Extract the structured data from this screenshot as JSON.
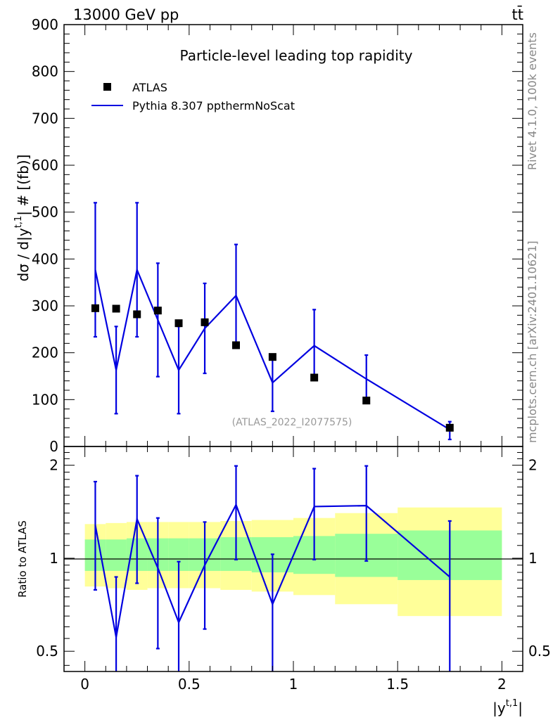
{
  "header": {
    "energy_label": "13000 GeV pp",
    "process_label": "tt̄"
  },
  "side_labels": {
    "rivet": "Rivet 4.1.0,  100k events",
    "mcplots": "mcplots.cern.ch [arXiv:2401.10621]"
  },
  "chart_data": [
    {
      "type": "scatter",
      "panel": "main",
      "title": "Particle-level leading top rapidity",
      "ylabel_main": "dσ / d|y",
      "ylabel_sup": "t,1",
      "ylabel_tail": "| # [(fb)]",
      "xlim": [
        -0.1,
        2.1
      ],
      "ylim": [
        0,
        900
      ],
      "yticks": [
        0,
        100,
        200,
        300,
        400,
        500,
        600,
        700,
        800,
        900
      ],
      "yticklabels": [
        "0",
        "100",
        "200",
        "300",
        "400",
        "500",
        "600",
        "700",
        "800",
        "900"
      ],
      "watermark": "(ATLAS_2022_I2077575)",
      "legend": [
        {
          "name": "ATLAS",
          "marker": "square",
          "color": "#000000"
        },
        {
          "name": "Pythia 8.307 ppthermNoScat",
          "marker": "line",
          "color": "#0000e0"
        }
      ],
      "series": [
        {
          "name": "ATLAS",
          "x": [
            0.05,
            0.15,
            0.25,
            0.35,
            0.45,
            0.575,
            0.725,
            0.9,
            1.1,
            1.35,
            1.75
          ],
          "values": [
            295,
            294,
            282,
            290,
            263,
            265,
            216,
            191,
            147,
            98,
            40
          ]
        },
        {
          "name": "Pythia 8.307 ppthermNoScat",
          "x": [
            0.05,
            0.15,
            0.25,
            0.35,
            0.45,
            0.575,
            0.725,
            0.9,
            1.1,
            1.35,
            1.75
          ],
          "values": [
            377,
            163,
            377,
            270,
            163,
            252,
            322,
            136,
            215,
            144,
            36
          ],
          "err_low": [
            143,
            93,
            143,
            121,
            93,
            96,
            109,
            61,
            71,
            49,
            21
          ],
          "err_high": [
            143,
            93,
            143,
            121,
            93,
            96,
            109,
            61,
            77,
            51,
            17
          ]
        }
      ]
    },
    {
      "type": "line",
      "panel": "ratio",
      "ylabel": "Ratio to ATLAS",
      "xlabel_main": "|y",
      "xlabel_sup": "t,1",
      "xlabel_tail": "|",
      "scale": "log",
      "ylim": [
        0.43,
        2.3
      ],
      "yticks": [
        0.5,
        1,
        2
      ],
      "yticklabels": [
        "0.5",
        "1",
        "2"
      ],
      "xticks": [
        0,
        0.5,
        1,
        1.5,
        2
      ],
      "xticklabels": [
        "0",
        "0.5",
        "1",
        "1.5",
        "2"
      ],
      "bins": [
        [
          0,
          0.1
        ],
        [
          0.1,
          0.2
        ],
        [
          0.2,
          0.3
        ],
        [
          0.3,
          0.4
        ],
        [
          0.4,
          0.5
        ],
        [
          0.5,
          0.65
        ],
        [
          0.65,
          0.8
        ],
        [
          0.8,
          1.0
        ],
        [
          1.0,
          1.2
        ],
        [
          1.2,
          1.5
        ],
        [
          1.5,
          2.0
        ]
      ],
      "band_stat_low": [
        0.91,
        0.91,
        0.91,
        0.91,
        0.91,
        0.91,
        0.91,
        0.9,
        0.89,
        0.87,
        0.85
      ],
      "band_stat_high": [
        1.15,
        1.15,
        1.16,
        1.16,
        1.16,
        1.16,
        1.17,
        1.17,
        1.18,
        1.2,
        1.23
      ],
      "band_total_low": [
        0.81,
        0.8,
        0.79,
        0.8,
        0.8,
        0.8,
        0.79,
        0.78,
        0.76,
        0.71,
        0.65
      ],
      "band_total_high": [
        1.29,
        1.3,
        1.31,
        1.31,
        1.31,
        1.31,
        1.32,
        1.33,
        1.35,
        1.4,
        1.46
      ],
      "series": [
        {
          "name": "Pythia 8.307 ppthermNoScat / ATLAS",
          "x": [
            0.05,
            0.15,
            0.25,
            0.35,
            0.45,
            0.575,
            0.725,
            0.9,
            1.1,
            1.35,
            1.75
          ],
          "values": [
            1.28,
            0.555,
            1.34,
            0.93,
            0.62,
            0.95,
            1.49,
            0.71,
            1.47,
            1.48,
            0.87
          ],
          "err_low": [
            0.49,
            0.315,
            0.51,
            0.42,
            0.355,
            0.36,
            0.5,
            0.32,
            0.48,
            0.5,
            0.45
          ],
          "err_high": [
            0.49,
            0.315,
            0.51,
            0.42,
            0.355,
            0.36,
            0.5,
            0.32,
            0.48,
            0.51,
            0.45
          ]
        }
      ]
    }
  ],
  "colors": {
    "data": "#000000",
    "mc": "#0000e0",
    "band_stat": "#99ff99",
    "band_total": "#ffff99",
    "side_text": "#888888",
    "watermark": "#999999"
  }
}
